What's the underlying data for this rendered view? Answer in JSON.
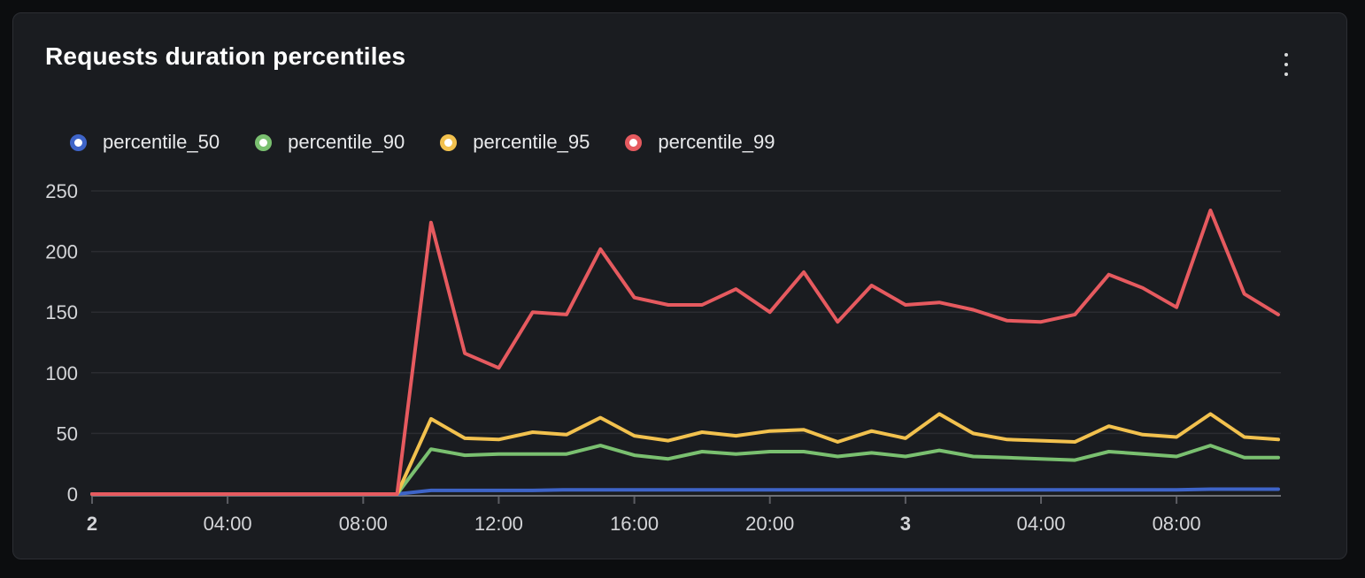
{
  "panel": {
    "title": "Requests duration percentiles",
    "menu_icon": "kebab-vertical-icon"
  },
  "colors": {
    "page_background": "#0c0d0f",
    "panel_background": "#1a1c20",
    "panel_border": "#2c2e33",
    "grid": "#2b2c31",
    "axis_baseline": "#6e7076",
    "tick_mark": "#5c5d63",
    "tick_text": "#d4d5d8",
    "title_text": "#ffffff",
    "series_blue": "#3e64c8",
    "series_green": "#7ac070",
    "series_yellow": "#f2c14e",
    "series_red": "#e65a5f"
  },
  "chart_data": {
    "type": "line",
    "title": "Requests duration percentiles",
    "xlabel": "",
    "ylabel": "",
    "x_description": "hourly samples from day 2 00:00 through day 3 11:00",
    "x_hours_span": 35,
    "ylim": [
      0,
      260
    ],
    "y_ticks": [
      0,
      50,
      100,
      150,
      200,
      250
    ],
    "x_ticks": [
      {
        "label": "2",
        "hour": 0,
        "bold": true
      },
      {
        "label": "04:00",
        "hour": 4,
        "bold": false
      },
      {
        "label": "08:00",
        "hour": 8,
        "bold": false
      },
      {
        "label": "12:00",
        "hour": 12,
        "bold": false
      },
      {
        "label": "16:00",
        "hour": 16,
        "bold": false
      },
      {
        "label": "20:00",
        "hour": 20,
        "bold": false
      },
      {
        "label": "3",
        "hour": 24,
        "bold": true
      },
      {
        "label": "04:00",
        "hour": 28,
        "bold": false
      },
      {
        "label": "08:00",
        "hour": 32,
        "bold": false
      }
    ],
    "grid": "horizontal-only",
    "legend_position": "top",
    "series": [
      {
        "name": "percentile_50",
        "color": "#3e64c8",
        "values": [
          0,
          0,
          0,
          0,
          0,
          0,
          0,
          0,
          0,
          0,
          3,
          3,
          3,
          3,
          3.5,
          3.5,
          3.5,
          3.5,
          3.5,
          3.5,
          3.5,
          3.5,
          3.5,
          3.5,
          3.5,
          3.5,
          3.5,
          3.5,
          3.5,
          3.5,
          3.5,
          3.5,
          3.5,
          4,
          4,
          4
        ]
      },
      {
        "name": "percentile_90",
        "color": "#7ac070",
        "values": [
          0,
          0,
          0,
          0,
          0,
          0,
          0,
          0,
          0,
          0,
          37,
          32,
          33,
          33,
          33,
          40,
          32,
          29,
          35,
          33,
          35,
          35,
          31,
          34,
          31,
          36,
          31,
          30,
          29,
          28,
          35,
          33,
          31,
          40,
          30,
          30
        ]
      },
      {
        "name": "percentile_95",
        "color": "#f2c14e",
        "values": [
          0,
          0,
          0,
          0,
          0,
          0,
          0,
          0,
          0,
          0,
          62,
          46,
          45,
          51,
          49,
          63,
          48,
          44,
          51,
          48,
          52,
          53,
          43,
          52,
          46,
          66,
          50,
          45,
          44,
          43,
          56,
          49,
          47,
          66,
          47,
          45
        ]
      },
      {
        "name": "percentile_99",
        "color": "#e65a5f",
        "values": [
          0,
          0,
          0,
          0,
          0,
          0,
          0,
          0,
          0,
          0,
          224,
          116,
          104,
          150,
          148,
          202,
          162,
          156,
          156,
          169,
          150,
          183,
          142,
          172,
          156,
          158,
          152,
          143,
          142,
          148,
          181,
          170,
          154,
          234,
          165,
          148
        ]
      }
    ]
  }
}
